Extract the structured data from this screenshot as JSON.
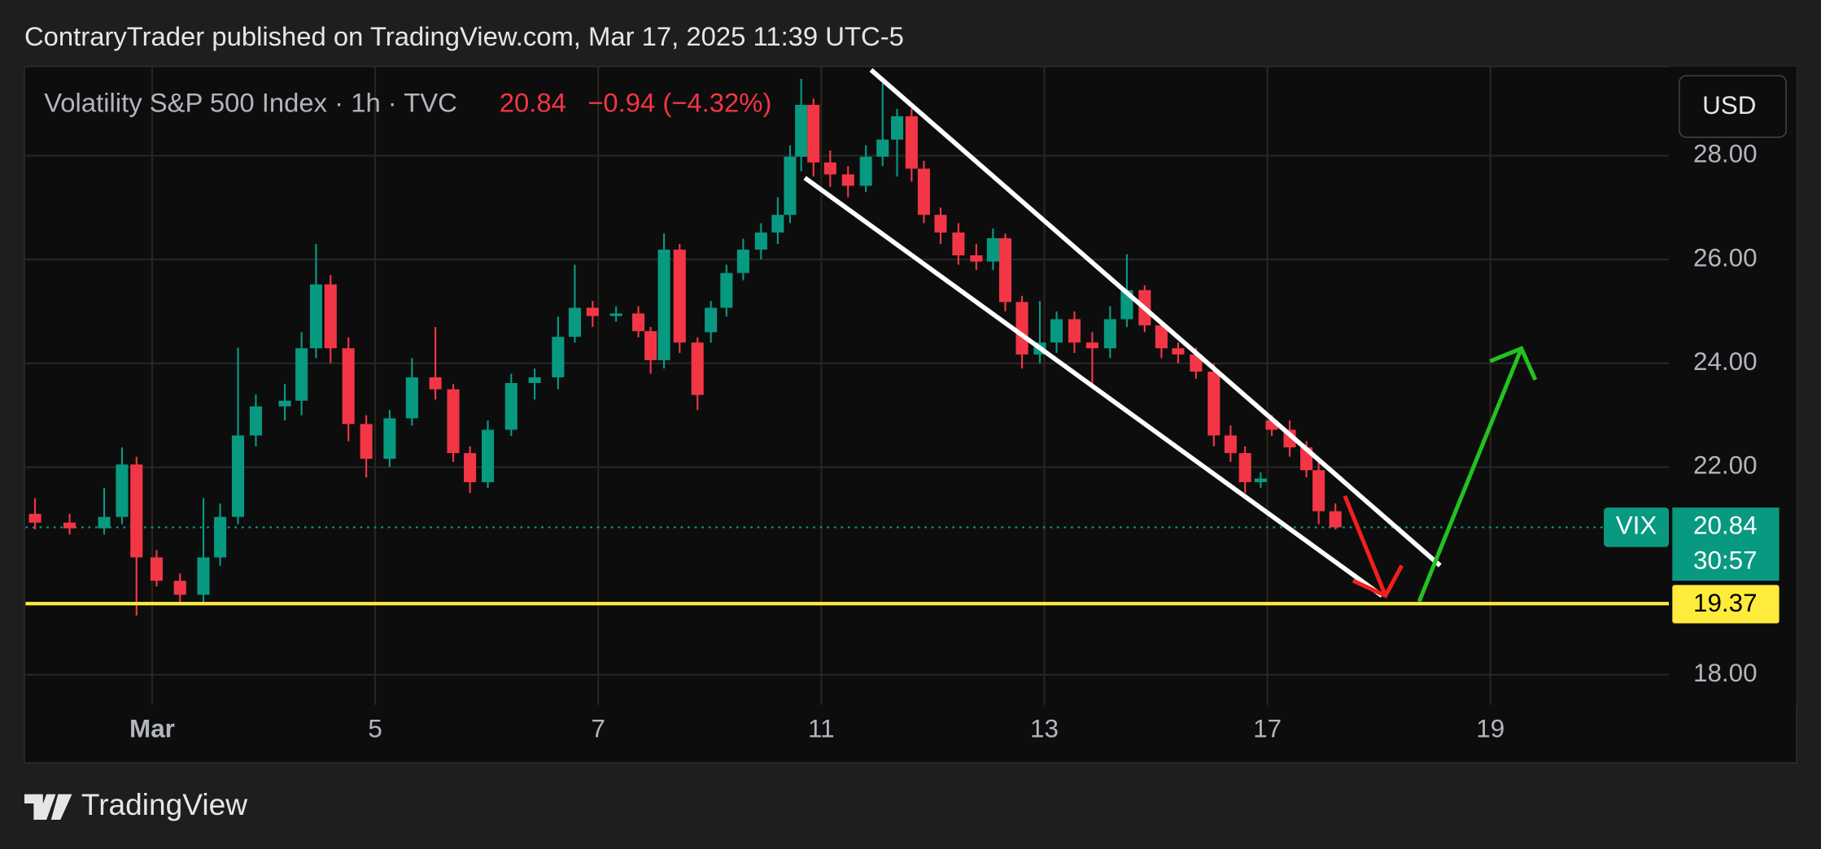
{
  "header": {
    "published": "ContraryTrader published on TradingView.com, Mar 17, 2025 11:39 UTC-5"
  },
  "chart_data": {
    "type": "candlestick",
    "title": "Volatility S&P 500 Index · 1h · TVC",
    "last_price": 20.84,
    "change_label": "−0.94 (−4.32%)",
    "symbol": "VIX",
    "countdown": "30:57",
    "currency": "USD",
    "up_color": "#089981",
    "down_color": "#f23645",
    "x": [
      -1.05,
      -0.74,
      -0.43,
      -0.27,
      -0.14,
      0.04,
      0.25,
      0.46,
      0.61,
      0.77,
      0.93,
      1.19,
      1.34,
      1.47,
      1.6,
      1.76,
      1.92,
      2.13,
      2.33,
      2.54,
      2.7,
      2.85,
      3.01,
      3.22,
      3.43,
      3.64,
      3.79,
      3.95,
      4.16,
      4.36,
      4.47,
      4.59,
      4.73,
      4.89,
      5.01,
      5.15,
      5.3,
      5.46,
      5.61,
      5.72,
      5.82,
      5.93,
      6.08,
      6.24,
      6.4,
      6.55,
      6.68,
      6.81,
      6.92,
      7.07,
      7.23,
      7.39,
      7.54,
      7.65,
      7.8,
      7.96,
      8.11,
      8.27,
      8.43,
      8.59,
      8.74,
      8.9,
      9.05,
      9.2,
      9.36,
      9.52,
      9.67,
      9.8,
      9.94,
      10.04,
      10.2,
      10.35,
      10.46,
      10.61
    ],
    "open": [
      21.1,
      20.93,
      20.82,
      21.04,
      22.05,
      20.26,
      19.81,
      19.54,
      20.26,
      21.04,
      22.61,
      23.17,
      23.28,
      24.29,
      25.52,
      24.29,
      22.83,
      22.16,
      22.94,
      23.73,
      23.5,
      22.27,
      21.71,
      22.72,
      23.62,
      23.73,
      24.51,
      25.07,
      24.91,
      24.96,
      24.62,
      24.06,
      26.19,
      24.4,
      24.6,
      25.07,
      25.74,
      26.19,
      26.52,
      26.86,
      27.98,
      28.98,
      27.87,
      27.64,
      27.42,
      27.98,
      28.31,
      28.76,
      27.75,
      26.86,
      26.52,
      26.08,
      25.96,
      26.41,
      25.18,
      24.17,
      24.4,
      24.85,
      24.4,
      24.29,
      24.85,
      25.41,
      24.73,
      24.29,
      24.17,
      23.84,
      22.61,
      22.27,
      21.71,
      22.9,
      22.72,
      22.38,
      21.94,
      21.15
    ],
    "high": [
      21.4,
      21.1,
      21.6,
      22.38,
      22.2,
      20.4,
      19.95,
      21.4,
      21.3,
      24.3,
      23.4,
      23.6,
      24.6,
      26.3,
      25.7,
      24.5,
      23.0,
      23.1,
      24.1,
      24.7,
      23.6,
      22.4,
      22.9,
      23.8,
      23.9,
      24.9,
      25.9,
      25.2,
      25.1,
      25.1,
      24.7,
      26.5,
      26.3,
      24.5,
      25.2,
      25.9,
      26.4,
      26.7,
      27.2,
      28.2,
      29.48,
      29.1,
      28.1,
      27.8,
      28.2,
      29.4,
      28.9,
      28.9,
      27.9,
      27.0,
      26.7,
      26.3,
      26.6,
      26.5,
      25.3,
      25.2,
      25.0,
      25.0,
      24.6,
      25.1,
      26.1,
      25.5,
      24.8,
      24.4,
      24.3,
      24.0,
      22.8,
      22.4,
      21.9,
      23.0,
      22.9,
      22.5,
      22.1,
      21.3
    ],
    "low": [
      20.8,
      20.7,
      20.7,
      20.9,
      19.14,
      19.7,
      19.35,
      19.4,
      20.1,
      20.9,
      22.4,
      22.9,
      23.0,
      24.1,
      24.0,
      22.5,
      21.8,
      22.0,
      22.8,
      23.3,
      22.1,
      21.5,
      21.6,
      22.6,
      23.3,
      23.5,
      24.4,
      24.7,
      24.8,
      24.5,
      23.8,
      23.9,
      24.2,
      23.1,
      24.4,
      24.9,
      25.6,
      26.0,
      26.3,
      26.7,
      27.7,
      27.6,
      27.4,
      27.2,
      27.3,
      27.8,
      27.6,
      27.5,
      26.7,
      26.3,
      25.9,
      25.8,
      25.8,
      25.0,
      23.9,
      24.0,
      24.2,
      24.2,
      23.6,
      24.1,
      24.7,
      24.6,
      24.1,
      24.0,
      23.7,
      22.4,
      22.1,
      21.5,
      21.6,
      22.6,
      22.2,
      21.8,
      20.9,
      20.8
    ],
    "close": [
      20.93,
      20.82,
      21.04,
      22.05,
      20.26,
      19.81,
      19.54,
      20.26,
      21.04,
      22.61,
      23.17,
      23.28,
      24.29,
      25.52,
      24.29,
      22.83,
      22.16,
      22.94,
      23.73,
      23.5,
      22.27,
      21.71,
      22.72,
      23.62,
      23.73,
      24.51,
      25.07,
      24.91,
      24.96,
      24.62,
      24.06,
      26.19,
      24.4,
      23.39,
      25.07,
      25.74,
      26.19,
      26.52,
      26.86,
      27.98,
      28.98,
      27.87,
      27.64,
      27.42,
      27.98,
      28.31,
      28.76,
      27.75,
      26.86,
      26.52,
      26.08,
      25.96,
      26.41,
      25.18,
      24.17,
      24.4,
      24.85,
      24.4,
      24.29,
      24.85,
      25.41,
      24.73,
      24.29,
      24.17,
      23.84,
      22.61,
      22.27,
      21.71,
      21.78,
      22.72,
      22.38,
      21.94,
      21.15,
      20.84
    ],
    "xlim": [
      -1.135,
      13.6
    ],
    "xticks": [
      {
        "value": 0,
        "label": "Mar"
      },
      {
        "value": 2,
        "label": "5"
      },
      {
        "value": 4,
        "label": "7"
      },
      {
        "value": 6,
        "label": "11"
      },
      {
        "value": 8,
        "label": "13"
      },
      {
        "value": 10,
        "label": "17"
      },
      {
        "value": 12,
        "label": "19"
      }
    ],
    "ylim": [
      17.42,
      29.72
    ],
    "yticks": [
      {
        "value": 18,
        "label": "18.00"
      },
      {
        "value": 22,
        "label": "22.00"
      },
      {
        "value": 24,
        "label": "24.00"
      },
      {
        "value": 26,
        "label": "26.00"
      },
      {
        "value": 28,
        "label": "28.00"
      }
    ],
    "grid": true,
    "horizontal_line": {
      "value": 19.37,
      "color": "#ffeb3b"
    }
  },
  "footer": {
    "brand": "TradingView"
  }
}
